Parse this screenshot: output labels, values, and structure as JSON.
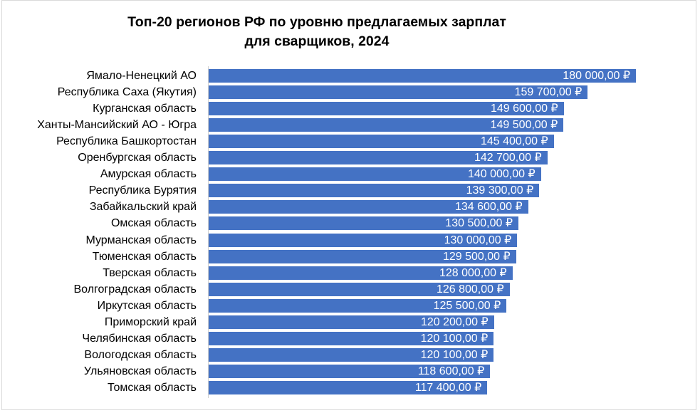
{
  "chart_data": {
    "type": "bar",
    "orientation": "horizontal",
    "title": "Топ-20 регионов РФ по уровню предлагаемых зарплат",
    "title_line2": "для сварщиков, 2024",
    "xlabel": "",
    "ylabel": "",
    "xlim": [
      0,
      180000
    ],
    "grid": false,
    "bar_color": "#4472c4",
    "categories": [
      "Ямало-Ненецкий АО",
      "Республика Саха (Якутия)",
      "Курганская область",
      "Ханты-Мансийский АО - Югра",
      "Республика Башкортостан",
      "Оренбургская область",
      "Амурская область",
      "Республика Бурятия",
      "Забайкальский край",
      "Омская область",
      "Мурманская область",
      "Тюменская область",
      "Тверская область",
      "Волгоградская область",
      "Иркутская область",
      "Приморский край",
      "Челябинская область",
      "Вологодская область",
      "Ульяновская область",
      "Томская область"
    ],
    "values": [
      180000,
      159700,
      149600,
      149500,
      145400,
      142700,
      140000,
      139300,
      134600,
      130500,
      130000,
      129500,
      128000,
      126800,
      125500,
      120200,
      120100,
      120100,
      118600,
      117400
    ],
    "data_labels": [
      "180 000,00 ₽",
      "159 700,00 ₽",
      "149 600,00 ₽",
      "149 500,00 ₽",
      "145 400,00 ₽",
      "142 700,00 ₽",
      "140 000,00 ₽",
      "139 300,00 ₽",
      "134 600,00 ₽",
      "130 500,00 ₽",
      "130 000,00 ₽",
      "129 500,00 ₽",
      "128 000,00 ₽",
      "126 800,00 ₽",
      "125 500,00 ₽",
      "120 200,00 ₽",
      "120 100,00 ₽",
      "120 100,00 ₽",
      "118 600,00 ₽",
      "117 400,00 ₽"
    ]
  }
}
